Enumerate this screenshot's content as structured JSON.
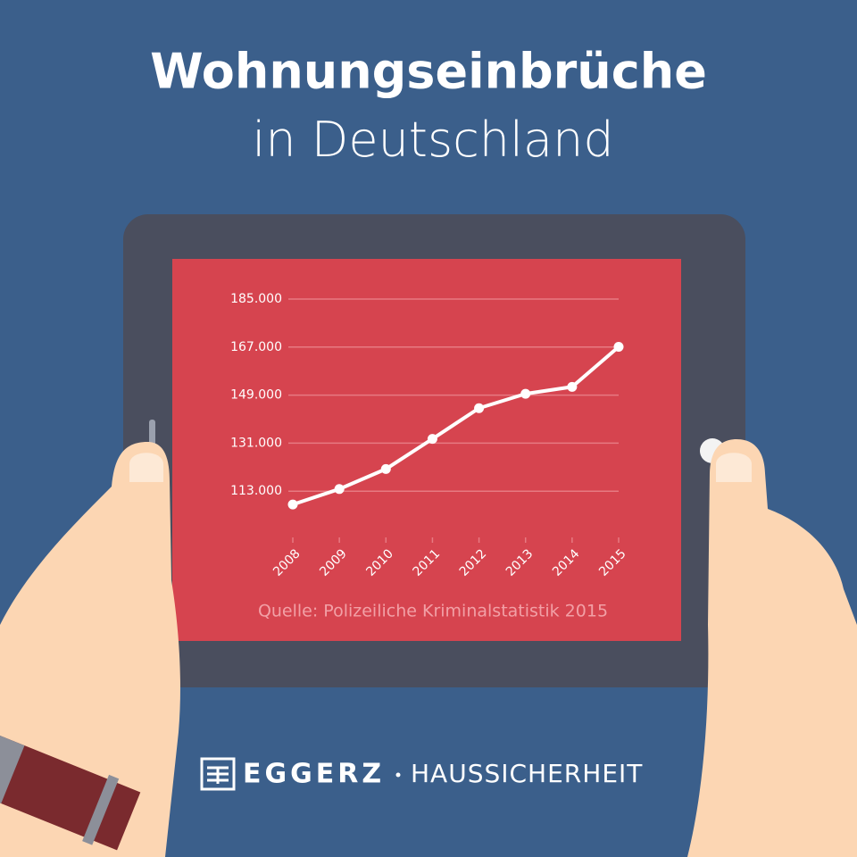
{
  "chart_data": {
    "type": "line",
    "title": "Wohnungseinbrüche",
    "subtitle": "in Deutschland",
    "source": "Quelle: Polizeiliche Kriminalstatistik 2015",
    "categories": [
      "2008",
      "2009",
      "2010",
      "2011",
      "2012",
      "2013",
      "2014",
      "2015"
    ],
    "values": [
      108000,
      113800,
      121300,
      132600,
      144100,
      149500,
      152100,
      167100
    ],
    "color": "#ffffff",
    "ylim": [
      95000,
      185000
    ],
    "yticks": [
      {
        "value": 113000,
        "label": "113.000"
      },
      {
        "value": 131000,
        "label": "131.000"
      },
      {
        "value": 149000,
        "label": "149.000"
      },
      {
        "value": 167000,
        "label": "167.000"
      },
      {
        "value": 185000,
        "label": "185.000"
      }
    ],
    "grid": true
  },
  "footer": {
    "brand": "EGGERZ",
    "tagline": "HAUSSICHERHEIT"
  }
}
